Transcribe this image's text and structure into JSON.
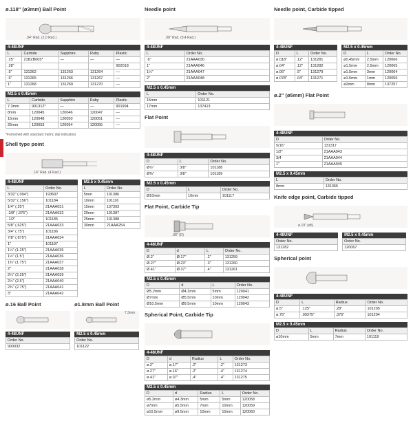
{
  "colors": {
    "accent": "#c9252c",
    "hdr_bg": "#3b3b3b",
    "hdr_fg": "#ffffff",
    "border": "#bbbbbb",
    "th_bg": "#eeeeee"
  },
  "ballpoint118": {
    "title": "ø.118\" (ø3mm) Ball Point",
    "dim_note": ".04\" Rad. (1,0 Rad.)",
    "t1": {
      "thread": "4-48UNF",
      "cols": [
        "L",
        "Carbide",
        "Sapphire",
        "Ruby",
        "Plastic"
      ],
      "rows": [
        [
          ".25\"",
          "21BZB005*",
          "—",
          "—",
          "—"
        ],
        [
          ".28\"",
          "",
          "",
          "",
          "902018"
        ],
        [
          ".5\"",
          "131262",
          "131263",
          "131264",
          "—"
        ],
        [
          ".6\"",
          "131265",
          "131266",
          "131267",
          "—"
        ],
        [
          "1\"",
          "131268",
          "131269",
          "131270",
          "—"
        ]
      ]
    },
    "t2": {
      "thread": "M2.5 x 0.45mm",
      "cols": [
        "L",
        "Carbide",
        "Sapphire",
        "Ruby",
        "Plastic"
      ],
      "rows": [
        [
          "7.3mm",
          "901312*",
          "—",
          "—",
          "901994"
        ],
        [
          "8mm",
          "120045",
          "120046",
          "120047",
          "—"
        ],
        [
          "15mm",
          "120048",
          "120050",
          "120051",
          "—"
        ],
        [
          "25mm",
          "120053",
          "120054",
          "120055",
          "—"
        ]
      ]
    },
    "footnote": "*Furnished with standard metric dial indicators"
  },
  "shell": {
    "title": "Shell type point",
    "dim_note": ".14\" Rad. (4 Rad.)",
    "t1": {
      "thread": "4-48UNF",
      "cols": [
        "L",
        "Order No."
      ],
      "rows": [
        [
          "3/32\" (.094\")",
          "193697"
        ],
        [
          "5/32\" (.156\")",
          "101184"
        ],
        [
          "1/4\" (.25\")",
          "21AAA031"
        ],
        [
          ".3/8\" (.375\")",
          "21AAA032"
        ],
        [
          ".1/2\"",
          "101185"
        ],
        [
          "5/8\" (.625\")",
          "21AAA033"
        ],
        [
          "3/4\" (.75\")",
          "101186"
        ],
        [
          "7/8\" (.875\")",
          "21AAA034"
        ],
        [
          "1\"",
          "101187"
        ],
        [
          "1¼\" (1.25\")",
          "21AAA035"
        ],
        [
          "1½\" (1.5\")",
          "21AAA036"
        ],
        [
          "1¾\" (1.75\")",
          "21AAA037"
        ],
        [
          "2\"",
          "21AAA038"
        ],
        [
          "2¼\" (2.25\")",
          "21AAA039"
        ],
        [
          "2½\" (2.5\")",
          "21AAA040"
        ],
        [
          "2¾\" (2.75\")",
          "21AAA041"
        ],
        [
          "3\"",
          "21AAA042"
        ]
      ]
    },
    "t2": {
      "thread": "M2.5 x 0.45mm",
      "cols": [
        "L",
        "Order No."
      ],
      "rows": [
        [
          "5mm",
          "101386"
        ],
        [
          "10mm",
          "101116"
        ],
        [
          "15mm",
          "137393"
        ],
        [
          "20mm",
          "101387"
        ],
        [
          "25mm",
          "101388"
        ],
        [
          "30mm",
          "21AAA254"
        ]
      ]
    }
  },
  "bp16": {
    "title": "ø.16 Ball Point",
    "t1": {
      "thread": "4-48UNF",
      "cols": [
        "Order No."
      ],
      "rows": [
        [
          "900032"
        ]
      ]
    }
  },
  "bp18": {
    "title": "ø1.8mm Ball Point",
    "dim_note": "7.3mm",
    "t1": {
      "thread": "M2.5 x 0.45mm",
      "cols": [
        "Order No."
      ],
      "rows": [
        [
          "101122"
        ]
      ]
    }
  },
  "needle": {
    "title": "Needle point",
    "dim_note": ".08\" Rad. (0,4 Rad.)",
    "t1": {
      "thread": "4-48UNF",
      "cols": [
        "L",
        "Order No."
      ],
      "rows": [
        [
          ".6\"",
          "21AAA030"
        ],
        [
          "1\"",
          "21AAA046"
        ],
        [
          "1½\"",
          "21AAA047"
        ],
        [
          "2\"",
          "21AAA048"
        ]
      ]
    },
    "t2": {
      "thread": "M2.5 x 0.45mm",
      "cols": [
        "L",
        "Order No."
      ],
      "rows": [
        [
          "15mm",
          "101121"
        ],
        [
          "17mm",
          "137413"
        ]
      ]
    }
  },
  "flat": {
    "title": "Flat Point",
    "t1": {
      "thread": "4-48UNF",
      "cols": [
        "D",
        "L",
        "Order No."
      ],
      "rows": [
        [
          "Ø½\"",
          "3/8\"",
          "101188"
        ],
        [
          "Ø⅜\"",
          "3/8\"",
          "101189"
        ]
      ]
    },
    "t2": {
      "thread": "M2.5 x 0.45mm",
      "cols": [
        "D",
        "L",
        "Order No."
      ],
      "rows": [
        [
          "Ø10mm",
          "10mm",
          "101117"
        ]
      ]
    }
  },
  "flatcarbide": {
    "title": "Flat Point, Carbide Tip",
    "dim_note": ".08\" (D)",
    "t1": {
      "thread": "4-48UNF",
      "cols": [
        "D",
        "d",
        "L",
        "Order No."
      ],
      "rows": [
        [
          "Ø.2\"",
          "Ø.17\"",
          ".2\"",
          "131259"
        ],
        [
          "Ø.27\"",
          "Ø.23\"",
          ".3\"",
          "131260"
        ],
        [
          "Ø.41\"",
          "Ø.37\"",
          ".4\"",
          "131261"
        ]
      ]
    },
    "t2": {
      "thread": "M2.5 x 0.45mm",
      "cols": [
        "D",
        "d",
        "L",
        "Order No."
      ],
      "rows": [
        [
          "Ø5.2mm",
          "Ø4.3mm",
          "5mm",
          "120041"
        ],
        [
          "Ø7mm",
          "Ø5.5mm",
          "10mm",
          "120042"
        ],
        [
          "Ø10.5mm",
          "Ø9.5mm",
          "10mm",
          "120043"
        ]
      ]
    }
  },
  "sphcarbide": {
    "title": "Spherical Point, Carbide Tip",
    "t1": {
      "thread": "4-48UNF",
      "cols": [
        "D",
        "d",
        "Radius",
        "L",
        "Order No."
      ],
      "rows": [
        [
          "ø.2\"",
          "ø.17\"",
          ".2\"",
          ".2\"",
          "131273"
        ],
        [
          "ø.27\"",
          "ø.16\"",
          ".2\"",
          ".4\"",
          "131274"
        ],
        [
          "ø.41\"",
          "ø.37\"",
          ".4\"",
          ".4\"",
          "131275"
        ]
      ]
    },
    "t2": {
      "thread": "M2.5 x 0.45mm",
      "cols": [
        "D",
        "d",
        "Radius",
        "L",
        "Order No."
      ],
      "rows": [
        [
          "ø5.2mm",
          "ø4.3mm",
          "5mm",
          "5mm",
          "120058"
        ],
        [
          "ø7mm",
          "ø5.5mm",
          "7mm",
          "10mm",
          "120059"
        ],
        [
          "ø10.5mm",
          "ø9.5mm",
          "10mm",
          "10mm",
          "120060"
        ]
      ]
    }
  },
  "needlect": {
    "title": "Needle point, Carbide tipped",
    "t1": {
      "thread": "4-48UNF",
      "cols": [
        "D",
        "L",
        "Order No."
      ],
      "rows": [
        [
          "ø.018\"",
          ".12\"",
          "131281"
        ],
        [
          "ø.04\"",
          ".12\"",
          "131282"
        ],
        [
          "ø.06\"",
          ".5\"",
          "131279"
        ],
        [
          "ø.078\"",
          ".04\"",
          "131271"
        ]
      ]
    },
    "t1b": {
      "thread": "M2.5 x 0.45mm",
      "cols": [
        "D",
        "L",
        "Order No."
      ],
      "rows": [
        [
          "ø0.45mm",
          "2.5mm",
          "120066"
        ],
        [
          "ø1.5mm",
          "2.5mm",
          "120065"
        ],
        [
          "ø1.5mm",
          "3mm",
          "120064"
        ],
        [
          "ø1.5mm",
          "1mm",
          "120056"
        ],
        [
          "ø2mm",
          "8mm",
          "137257"
        ]
      ]
    }
  },
  "flat2": {
    "title": "ø.2\" (ø5mm) Flat Point",
    "t1": {
      "thread": "4-48UNF",
      "cols": [
        "D",
        "Order No."
      ],
      "rows": [
        [
          "5/16\"",
          "131317"
        ],
        [
          "1/2\"",
          "21AAA043"
        ],
        [
          "3/4",
          "21AAA044"
        ],
        [
          "1\"",
          "21AAA045"
        ]
      ]
    },
    "t2": {
      "thread": "M2.5 x 0.45mm",
      "cols": [
        "L",
        "Order No."
      ],
      "rows": [
        [
          "8mm",
          "131365"
        ]
      ]
    }
  },
  "knife": {
    "title": "Knife edge point, Carbide tipped",
    "dim_note": "ø.19\" (ø5)",
    "t1": {
      "thread": "4-48UNF",
      "cols": [
        "Order No."
      ],
      "rows": [
        [
          "131282"
        ]
      ]
    },
    "t2": {
      "thread": "M2.5 x 0.45mm",
      "cols": [
        "Order No."
      ],
      "rows": [
        [
          "120067"
        ]
      ]
    }
  },
  "spherical": {
    "title": "Spherical point",
    "t1": {
      "thread": "4-48UNF",
      "cols": [
        "D",
        "L",
        "Radius",
        "Order No."
      ],
      "rows": [
        [
          "ø.5\"",
          ".125\"",
          ".28\"",
          "101205"
        ],
        [
          "ø.75\"",
          ".09375\"",
          ".375\"",
          "101204"
        ]
      ]
    },
    "t2": {
      "thread": "M2.5 x 0.45mm",
      "cols": [
        "D",
        "L",
        "Radius",
        "Order No."
      ],
      "rows": [
        [
          "ø10mm",
          "5mm",
          "7mm",
          "101119"
        ]
      ]
    }
  }
}
